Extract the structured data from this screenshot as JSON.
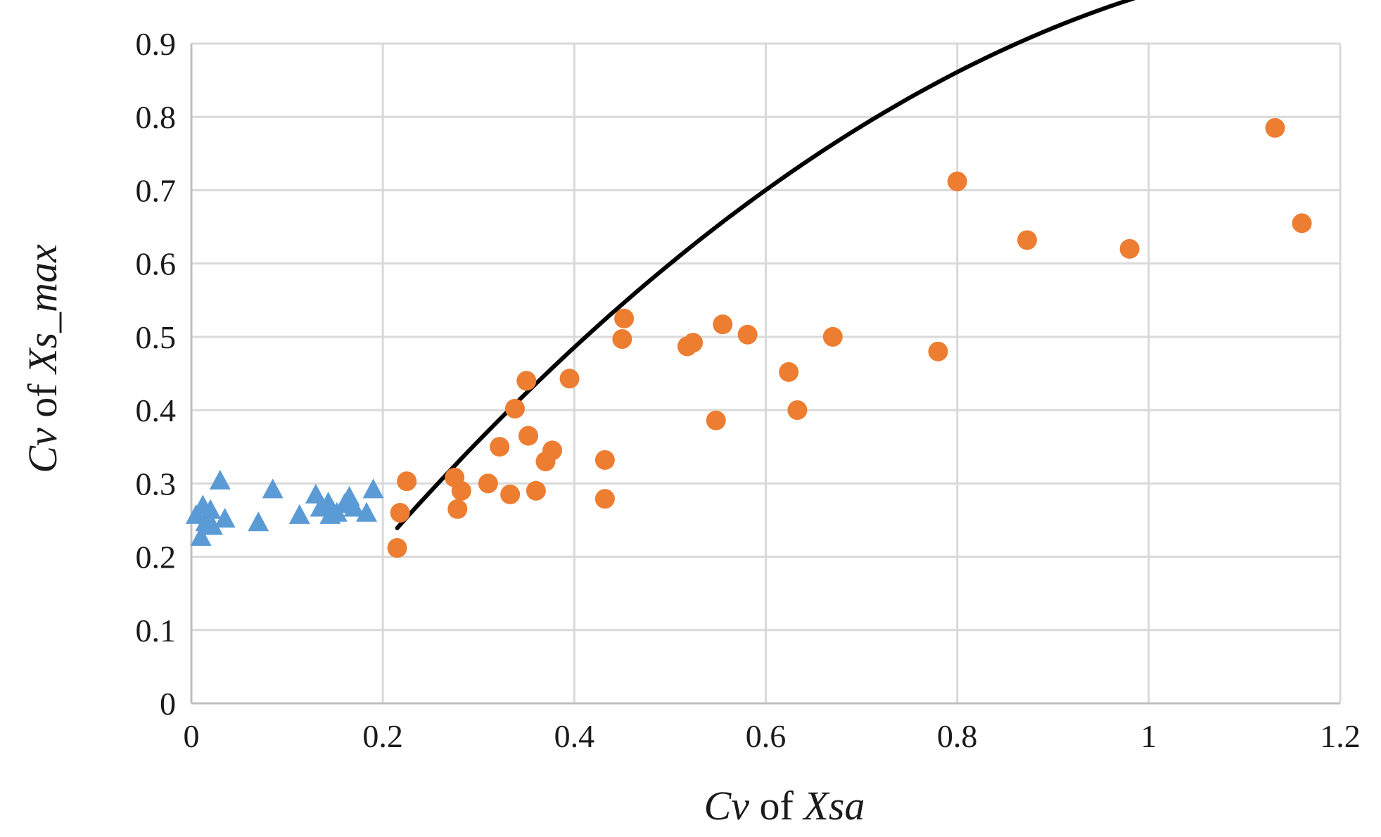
{
  "chart_data": {
    "type": "scatter",
    "title": "",
    "xlabel": {
      "prefix": "Cv",
      "middle": " of ",
      "suffix": "Xsa"
    },
    "ylabel": {
      "prefix": "Cv",
      "middle": " of ",
      "suffix": "Xs_max"
    },
    "xlim": [
      0,
      1.2
    ],
    "ylim": [
      0,
      0.9
    ],
    "x_ticks": [
      "0",
      "0.2",
      "0.4",
      "0.6",
      "0.8",
      "1",
      "1.2"
    ],
    "y_ticks": [
      "0",
      "0.1",
      "0.2",
      "0.3",
      "0.4",
      "0.5",
      "0.6",
      "0.7",
      "0.8",
      "0.9"
    ],
    "x_tick_values": [
      0,
      0.2,
      0.4,
      0.6,
      0.8,
      1.0,
      1.2
    ],
    "y_tick_values": [
      0,
      0.1,
      0.2,
      0.3,
      0.4,
      0.5,
      0.6,
      0.7,
      0.8,
      0.9
    ],
    "grid": true,
    "legend": "none",
    "series": [
      {
        "marker": "triangle",
        "color": "#5b9bd5",
        "points": [
          [
            0.005,
            0.255
          ],
          [
            0.01,
            0.225
          ],
          [
            0.012,
            0.268
          ],
          [
            0.015,
            0.245
          ],
          [
            0.02,
            0.262
          ],
          [
            0.022,
            0.24
          ],
          [
            0.03,
            0.302
          ],
          [
            0.035,
            0.25
          ],
          [
            0.07,
            0.245
          ],
          [
            0.085,
            0.29
          ],
          [
            0.113,
            0.255
          ],
          [
            0.13,
            0.283
          ],
          [
            0.135,
            0.265
          ],
          [
            0.143,
            0.272
          ],
          [
            0.145,
            0.255
          ],
          [
            0.152,
            0.258
          ],
          [
            0.16,
            0.27
          ],
          [
            0.165,
            0.28
          ],
          [
            0.17,
            0.265
          ],
          [
            0.183,
            0.258
          ],
          [
            0.19,
            0.29
          ]
        ]
      },
      {
        "marker": "circle",
        "color": "#ed7d31",
        "points": [
          [
            0.215,
            0.212
          ],
          [
            0.218,
            0.26
          ],
          [
            0.225,
            0.303
          ],
          [
            0.275,
            0.308
          ],
          [
            0.278,
            0.265
          ],
          [
            0.282,
            0.29
          ],
          [
            0.31,
            0.3
          ],
          [
            0.322,
            0.35
          ],
          [
            0.333,
            0.285
          ],
          [
            0.338,
            0.402
          ],
          [
            0.35,
            0.44
          ],
          [
            0.352,
            0.365
          ],
          [
            0.36,
            0.29
          ],
          [
            0.37,
            0.33
          ],
          [
            0.377,
            0.345
          ],
          [
            0.395,
            0.443
          ],
          [
            0.432,
            0.332
          ],
          [
            0.432,
            0.279
          ],
          [
            0.45,
            0.497
          ],
          [
            0.452,
            0.525
          ],
          [
            0.518,
            0.487
          ],
          [
            0.524,
            0.492
          ],
          [
            0.548,
            0.386
          ],
          [
            0.555,
            0.517
          ],
          [
            0.581,
            0.503
          ],
          [
            0.624,
            0.452
          ],
          [
            0.633,
            0.4
          ],
          [
            0.67,
            0.5
          ],
          [
            0.78,
            0.48
          ],
          [
            0.8,
            0.712
          ],
          [
            0.873,
            0.632
          ],
          [
            0.98,
            0.62
          ],
          [
            1.132,
            0.785
          ],
          [
            1.16,
            0.655
          ]
        ]
      }
    ],
    "trendline": {
      "type": "polynomial",
      "order": 2,
      "color": "#000000",
      "x_range": [
        0.215,
        1.16
      ],
      "coefficients": [
        -0.105,
        1.7457,
        -0.6726
      ]
    }
  }
}
